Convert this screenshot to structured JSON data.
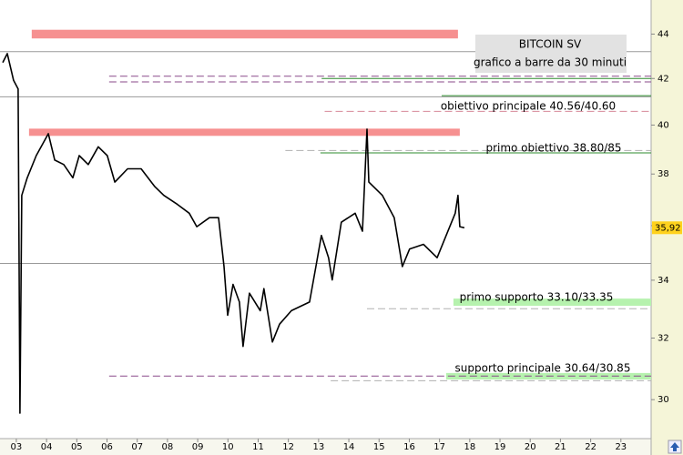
{
  "chart_data": {
    "type": "line",
    "title": "BITCOIN SV",
    "subtitle": "grafico a barre da 30 minuti",
    "log_scale": true,
    "grid": false,
    "color": "#000000",
    "xlim": [
      2.46,
      24.0
    ],
    "ylim": [
      28.8,
      45.6
    ],
    "yticks": [
      30,
      32,
      34,
      36,
      38,
      40,
      42,
      44
    ],
    "xticks": [
      {
        "value": 3,
        "label": "03"
      },
      {
        "value": 4,
        "label": "04"
      },
      {
        "value": 5,
        "label": "05"
      },
      {
        "value": 6,
        "label": "06"
      },
      {
        "value": 7,
        "label": "07"
      },
      {
        "value": 8,
        "label": "08"
      },
      {
        "value": 9,
        "label": "09"
      },
      {
        "value": 10,
        "label": "10"
      },
      {
        "value": 11,
        "label": "11"
      },
      {
        "value": 12,
        "label": "12"
      },
      {
        "value": 13,
        "label": "13"
      },
      {
        "value": 14,
        "label": "14"
      },
      {
        "value": 15,
        "label": "15"
      },
      {
        "value": 16,
        "label": "16"
      },
      {
        "value": 17,
        "label": "17"
      },
      {
        "value": 18,
        "label": "18"
      },
      {
        "value": 19,
        "label": "19"
      },
      {
        "value": 20,
        "label": "20"
      },
      {
        "value": 21,
        "label": "21"
      },
      {
        "value": 22,
        "label": "22"
      },
      {
        "value": 23,
        "label": "23"
      }
    ],
    "x": [
      2.55,
      2.7,
      2.91,
      3.06,
      3.12,
      3.18,
      3.36,
      3.66,
      4.06,
      4.27,
      4.57,
      4.87,
      5.08,
      5.38,
      5.71,
      6.01,
      6.26,
      6.68,
      7.13,
      7.58,
      7.88,
      8.33,
      8.72,
      8.97,
      9.39,
      9.69,
      9.87,
      9.99,
      10.17,
      10.38,
      10.5,
      10.71,
      11.07,
      11.19,
      11.47,
      11.71,
      12.1,
      12.7,
      12.91,
      13.09,
      13.33,
      13.45,
      13.75,
      14.21,
      14.45,
      14.6,
      14.66,
      15.11,
      15.5,
      15.77,
      16.01,
      16.47,
      16.92,
      17.22,
      17.52,
      17.61,
      17.67,
      17.82
    ],
    "values": [
      42.71,
      43.11,
      41.92,
      41.54,
      29.58,
      37.16,
      37.85,
      38.74,
      39.64,
      38.56,
      38.38,
      37.85,
      38.74,
      38.38,
      39.1,
      38.74,
      37.68,
      38.21,
      38.21,
      37.5,
      37.16,
      36.81,
      36.47,
      35.96,
      36.3,
      36.3,
      34.49,
      32.77,
      33.85,
      33.23,
      31.72,
      33.54,
      32.93,
      33.7,
      31.87,
      32.47,
      32.93,
      33.23,
      34.49,
      35.63,
      34.81,
      34.01,
      36.13,
      36.47,
      35.79,
      39.83,
      37.68,
      37.16,
      36.3,
      34.49,
      35.13,
      35.3,
      34.81,
      35.63,
      36.47,
      37.16,
      35.96,
      35.92
    ],
    "last_price": {
      "value": 35.92,
      "label": "35,92"
    },
    "zones": [
      {
        "low": 43.8,
        "high": 44.2,
        "from": 3.51,
        "to": 17.61,
        "color": "#f69090"
      },
      {
        "low": 39.55,
        "high": 39.85,
        "from": 3.42,
        "to": 17.67,
        "color": "#f69090"
      },
      {
        "low": 33.1,
        "high": 33.35,
        "from": 17.46,
        "to": 24.0,
        "color": "#b6f2ae"
      },
      {
        "low": 30.64,
        "high": 30.85,
        "from": 17.22,
        "to": 24.0,
        "color": "#b6f2ae"
      }
    ],
    "levels": [
      {
        "value": 43.2,
        "from": 2.46,
        "color": "#9a9a9a",
        "style": "solid"
      },
      {
        "value": 42.1,
        "from": 6.07,
        "color": "#8a4a8a",
        "style": "dashed"
      },
      {
        "value": 42.0,
        "from": 13.1,
        "color": "#2e8b2e",
        "style": "solid"
      },
      {
        "value": 41.85,
        "from": 6.07,
        "color": "#8a4a8a",
        "style": "dashed"
      },
      {
        "value": 41.2,
        "from": 2.46,
        "color": "#9a9a9a",
        "style": "solid"
      },
      {
        "value": 41.25,
        "from": 17.07,
        "color": "#2e8b2e",
        "style": "solid"
      },
      {
        "value": 40.58,
        "from": 13.2,
        "color": "#d88a9a",
        "style": "dashed"
      },
      {
        "value": 38.95,
        "from": 11.9,
        "color": "#b0b0b0",
        "style": "dashed"
      },
      {
        "value": 38.85,
        "from": 13.06,
        "color": "#2e8b2e",
        "style": "solid"
      },
      {
        "value": 34.6,
        "from": 2.46,
        "color": "#9a9a9a",
        "style": "solid"
      },
      {
        "value": 33.0,
        "from": 14.6,
        "color": "#b0b0b0",
        "style": "dashed"
      },
      {
        "value": 30.75,
        "from": 6.07,
        "color": "#8a4a8a",
        "style": "dashed"
      },
      {
        "value": 30.6,
        "from": 13.4,
        "color": "#b0b0b0",
        "style": "dashed"
      }
    ],
    "annotations": [
      "obiettivo principale 40.56/40.60",
      "primo obiettivo 38.80/85",
      "primo supporto 33.10/33.35",
      "supporto principale 30.64/30.85"
    ]
  }
}
